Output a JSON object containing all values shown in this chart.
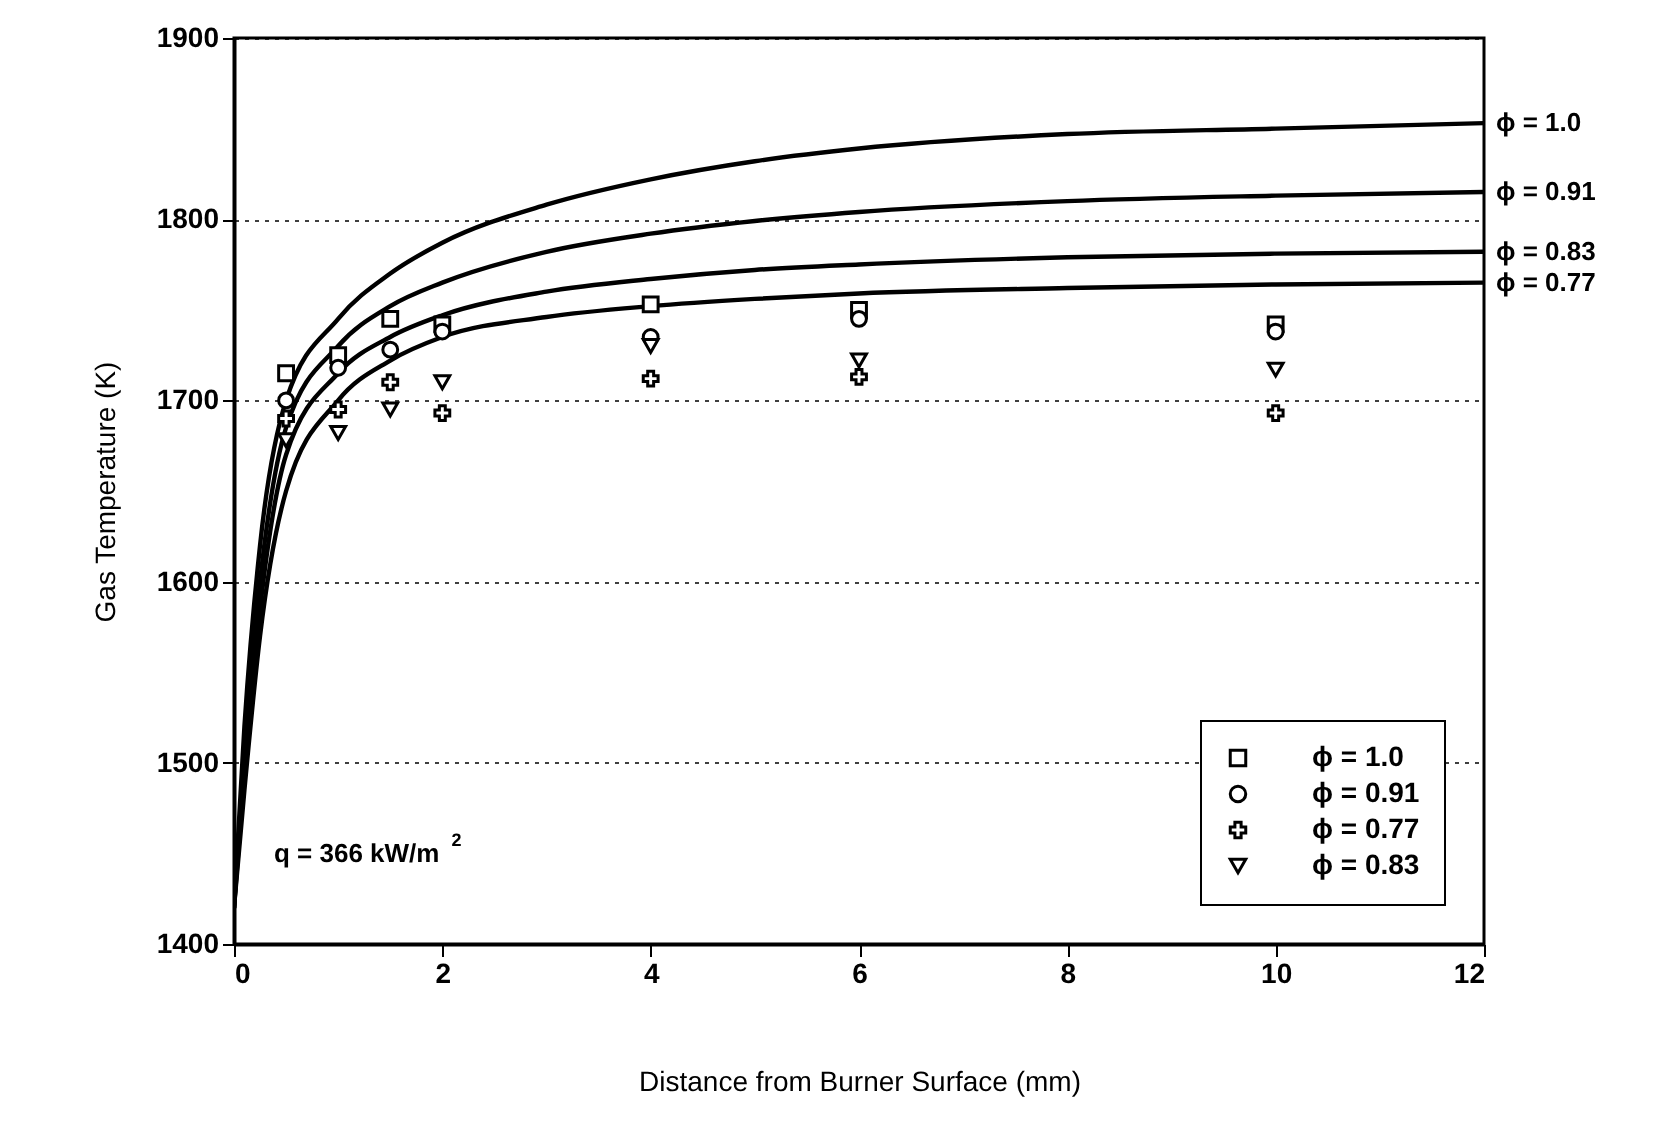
{
  "chart_data": {
    "type": "scatter",
    "xlabel": "Distance from Burner Surface (mm)",
    "ylabel": "Gas Temperature (K)",
    "xlim": [
      0,
      12
    ],
    "xticks": [
      0,
      2,
      4,
      6,
      8,
      10,
      12
    ],
    "ylim": [
      1400,
      1900
    ],
    "yticks": [
      1400,
      1500,
      1600,
      1700,
      1800,
      1900
    ],
    "grid": "y",
    "legend": "bottom right",
    "annotations": [
      "q = 366 kW/m$^{2}$"
    ],
    "series": [
      {
        "name": "ϕ = 1.0",
        "type": "line",
        "marker": "none",
        "color": "#000000",
        "x": [
          0,
          0.1,
          0.25,
          0.5,
          1,
          1.5,
          2,
          3,
          4,
          5,
          6,
          8,
          10,
          12
        ],
        "values": [
          1420,
          1520,
          1620,
          1700,
          1745,
          1770,
          1787,
          1808,
          1822,
          1832,
          1839,
          1847,
          1850,
          1853
        ]
      },
      {
        "name": "ϕ = 0.91",
        "type": "line",
        "marker": "none",
        "color": "#000000",
        "x": [
          0,
          0.1,
          0.25,
          0.5,
          1,
          1.5,
          2,
          3,
          4,
          5,
          6,
          8,
          10,
          12
        ],
        "values": [
          1420,
          1505,
          1600,
          1685,
          1730,
          1752,
          1765,
          1782,
          1792,
          1799,
          1804,
          1810,
          1813,
          1815
        ]
      },
      {
        "name": "ϕ = 0.83",
        "type": "line",
        "marker": "none",
        "color": "#000000",
        "x": [
          0,
          0.1,
          0.25,
          0.5,
          1,
          1.5,
          2,
          3,
          4,
          5,
          6,
          8,
          10,
          12
        ],
        "values": [
          1420,
          1495,
          1585,
          1670,
          1715,
          1735,
          1747,
          1760,
          1767,
          1772,
          1775,
          1779,
          1781,
          1782
        ]
      },
      {
        "name": "ϕ = 0.77",
        "type": "line",
        "marker": "none",
        "color": "#000000",
        "x": [
          0,
          0.1,
          0.25,
          0.5,
          1,
          1.5,
          2,
          3,
          4,
          5,
          6,
          8,
          10,
          12
        ],
        "values": [
          1420,
          1485,
          1570,
          1650,
          1700,
          1722,
          1735,
          1746,
          1752,
          1756,
          1759,
          1762,
          1764,
          1765
        ]
      },
      {
        "name": "ϕ = 1.0",
        "marker": "square",
        "color": "#000000",
        "x": [
          0.5,
          1,
          1.5,
          2,
          4,
          6,
          10
        ],
        "values": [
          1715,
          1725,
          1745,
          1742,
          1753,
          1750,
          1742
        ]
      },
      {
        "name": "ϕ = 0.91",
        "marker": "circle",
        "color": "#000000",
        "x": [
          0.5,
          1,
          1.5,
          2,
          4,
          6,
          10
        ],
        "values": [
          1700,
          1718,
          1728,
          1738,
          1735,
          1745,
          1738
        ]
      },
      {
        "name": "ϕ = 0.77",
        "marker": "cross",
        "color": "#000000",
        "x": [
          0.5,
          1,
          1.5,
          2,
          4,
          6,
          10
        ],
        "values": [
          1690,
          1695,
          1710,
          1693,
          1712,
          1713,
          1693
        ]
      },
      {
        "name": "ϕ = 0.83",
        "marker": "triangle",
        "color": "#000000",
        "x": [
          0.5,
          1,
          1.5,
          2,
          4,
          6,
          10
        ],
        "values": [
          1678,
          1682,
          1695,
          1710,
          1730,
          1722,
          1717
        ]
      }
    ]
  }
}
